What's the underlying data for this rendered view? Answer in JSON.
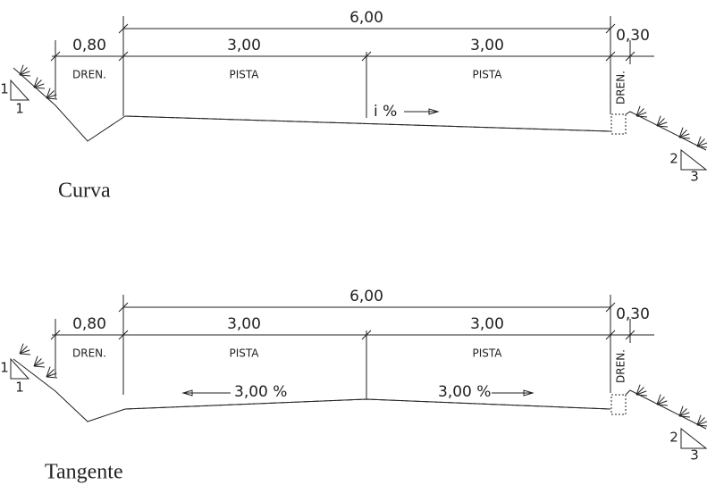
{
  "sections": [
    {
      "label": "Curva",
      "dimensions": {
        "total": "6,00",
        "dren_left": "0,80",
        "pista_left": "3,00",
        "pista_right": "3,00",
        "dren_right": "0,30"
      },
      "zones": [
        "DREN.",
        "PISTA",
        "PISTA",
        "DREN."
      ],
      "slope_labels": [
        "i %"
      ],
      "left_slope": [
        "1",
        "1"
      ],
      "right_slope": [
        "2",
        "3"
      ]
    },
    {
      "label": "Tangente",
      "dimensions": {
        "total": "6,00",
        "dren_left": "0,80",
        "pista_left": "3,00",
        "pista_right": "3,00",
        "dren_right": "0,30"
      },
      "zones": [
        "DREN.",
        "PISTA",
        "PISTA",
        "DREN."
      ],
      "slope_labels": [
        "3,00 %",
        "3,00 %"
      ],
      "left_slope": [
        "1",
        "1"
      ],
      "right_slope": [
        "2",
        "3"
      ]
    }
  ]
}
